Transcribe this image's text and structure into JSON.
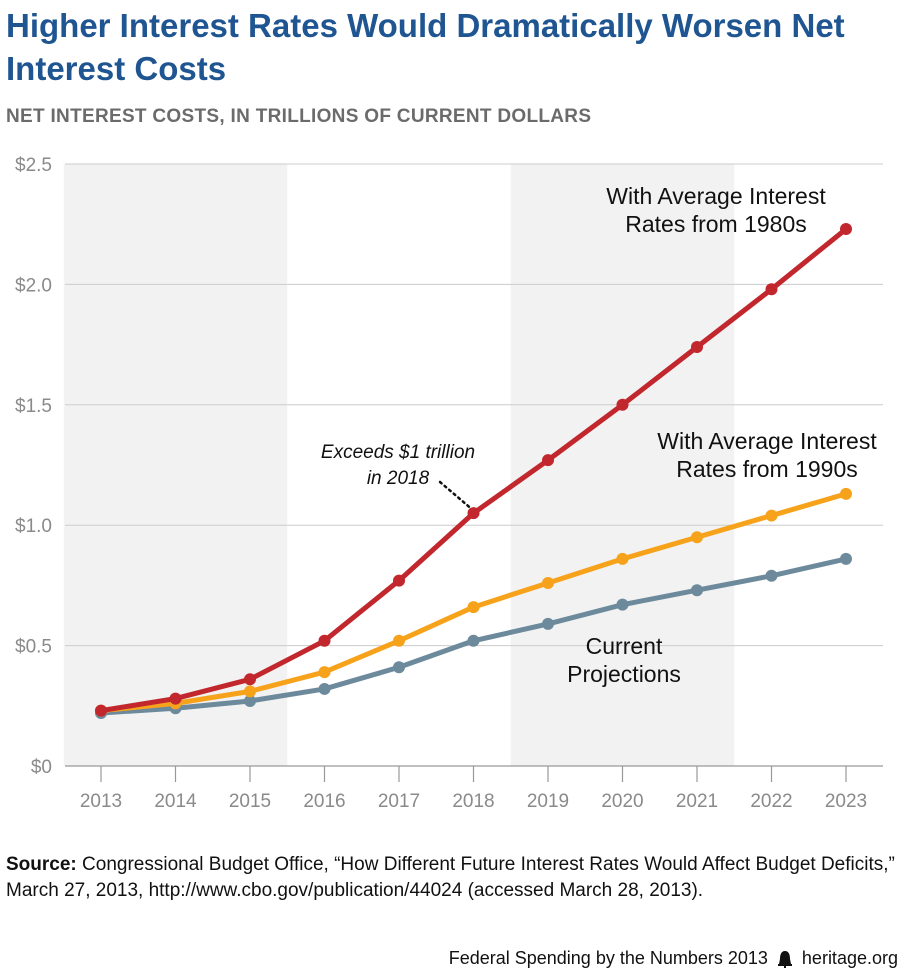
{
  "title": "Higher Interest Rates Would Dramatically Worsen Net Interest Costs",
  "subtitle": "NET INTEREST COSTS, IN TRILLIONS OF CURRENT DOLLARS",
  "chart_data": {
    "type": "line",
    "x": [
      2013,
      2014,
      2015,
      2016,
      2017,
      2018,
      2019,
      2020,
      2021,
      2022,
      2023
    ],
    "x_tick_labels": [
      "2013",
      "2014",
      "2015",
      "2016",
      "2017",
      "2018",
      "2019",
      "2020",
      "2021",
      "2022",
      "2023"
    ],
    "ylim": [
      0,
      2.5
    ],
    "y_ticks": [
      0,
      0.5,
      1.0,
      1.5,
      2.0,
      2.5
    ],
    "y_tick_labels": [
      "$0",
      "$0.5",
      "$1.0",
      "$1.5",
      "$2.0",
      "$2.5"
    ],
    "grid": true,
    "shaded_ranges": [
      [
        2012.5,
        2015.5
      ],
      [
        2018.5,
        2021.5
      ]
    ],
    "series": [
      {
        "name_lines": [
          "With Average Interest",
          "Rates from 1980s"
        ],
        "color": "#c1272d",
        "values": [
          0.23,
          0.28,
          0.36,
          0.52,
          0.77,
          1.05,
          1.27,
          1.5,
          1.74,
          1.98,
          2.23
        ]
      },
      {
        "name_lines": [
          "With Average Interest",
          "Rates from 1990s"
        ],
        "color": "#f7a21b",
        "values": [
          0.23,
          0.26,
          0.31,
          0.39,
          0.52,
          0.66,
          0.76,
          0.86,
          0.95,
          1.04,
          1.13
        ]
      },
      {
        "name_lines": [
          "Current",
          "Projections"
        ],
        "color": "#6d8a9c",
        "values": [
          0.22,
          0.24,
          0.27,
          0.32,
          0.41,
          0.52,
          0.59,
          0.67,
          0.73,
          0.79,
          0.86
        ]
      }
    ],
    "annotation": {
      "lines": [
        "Exceeds $1 trillion",
        "in 2018"
      ],
      "x": 2018,
      "y": 1.05
    }
  },
  "source": {
    "label": "Source:",
    "text": "Congressional Budget Office, “How Different Future Interest Rates Would Affect Budget Deficits,” March 27, 2013, http://www.cbo.gov/publication/44024 (accessed March 28, 2013)."
  },
  "footer": {
    "publication": "Federal Spending by the Numbers 2013",
    "site": "heritage.org"
  },
  "colors": {
    "title": "#1f5591",
    "shading": "#f2f2f2",
    "grid": "#cccccc"
  }
}
